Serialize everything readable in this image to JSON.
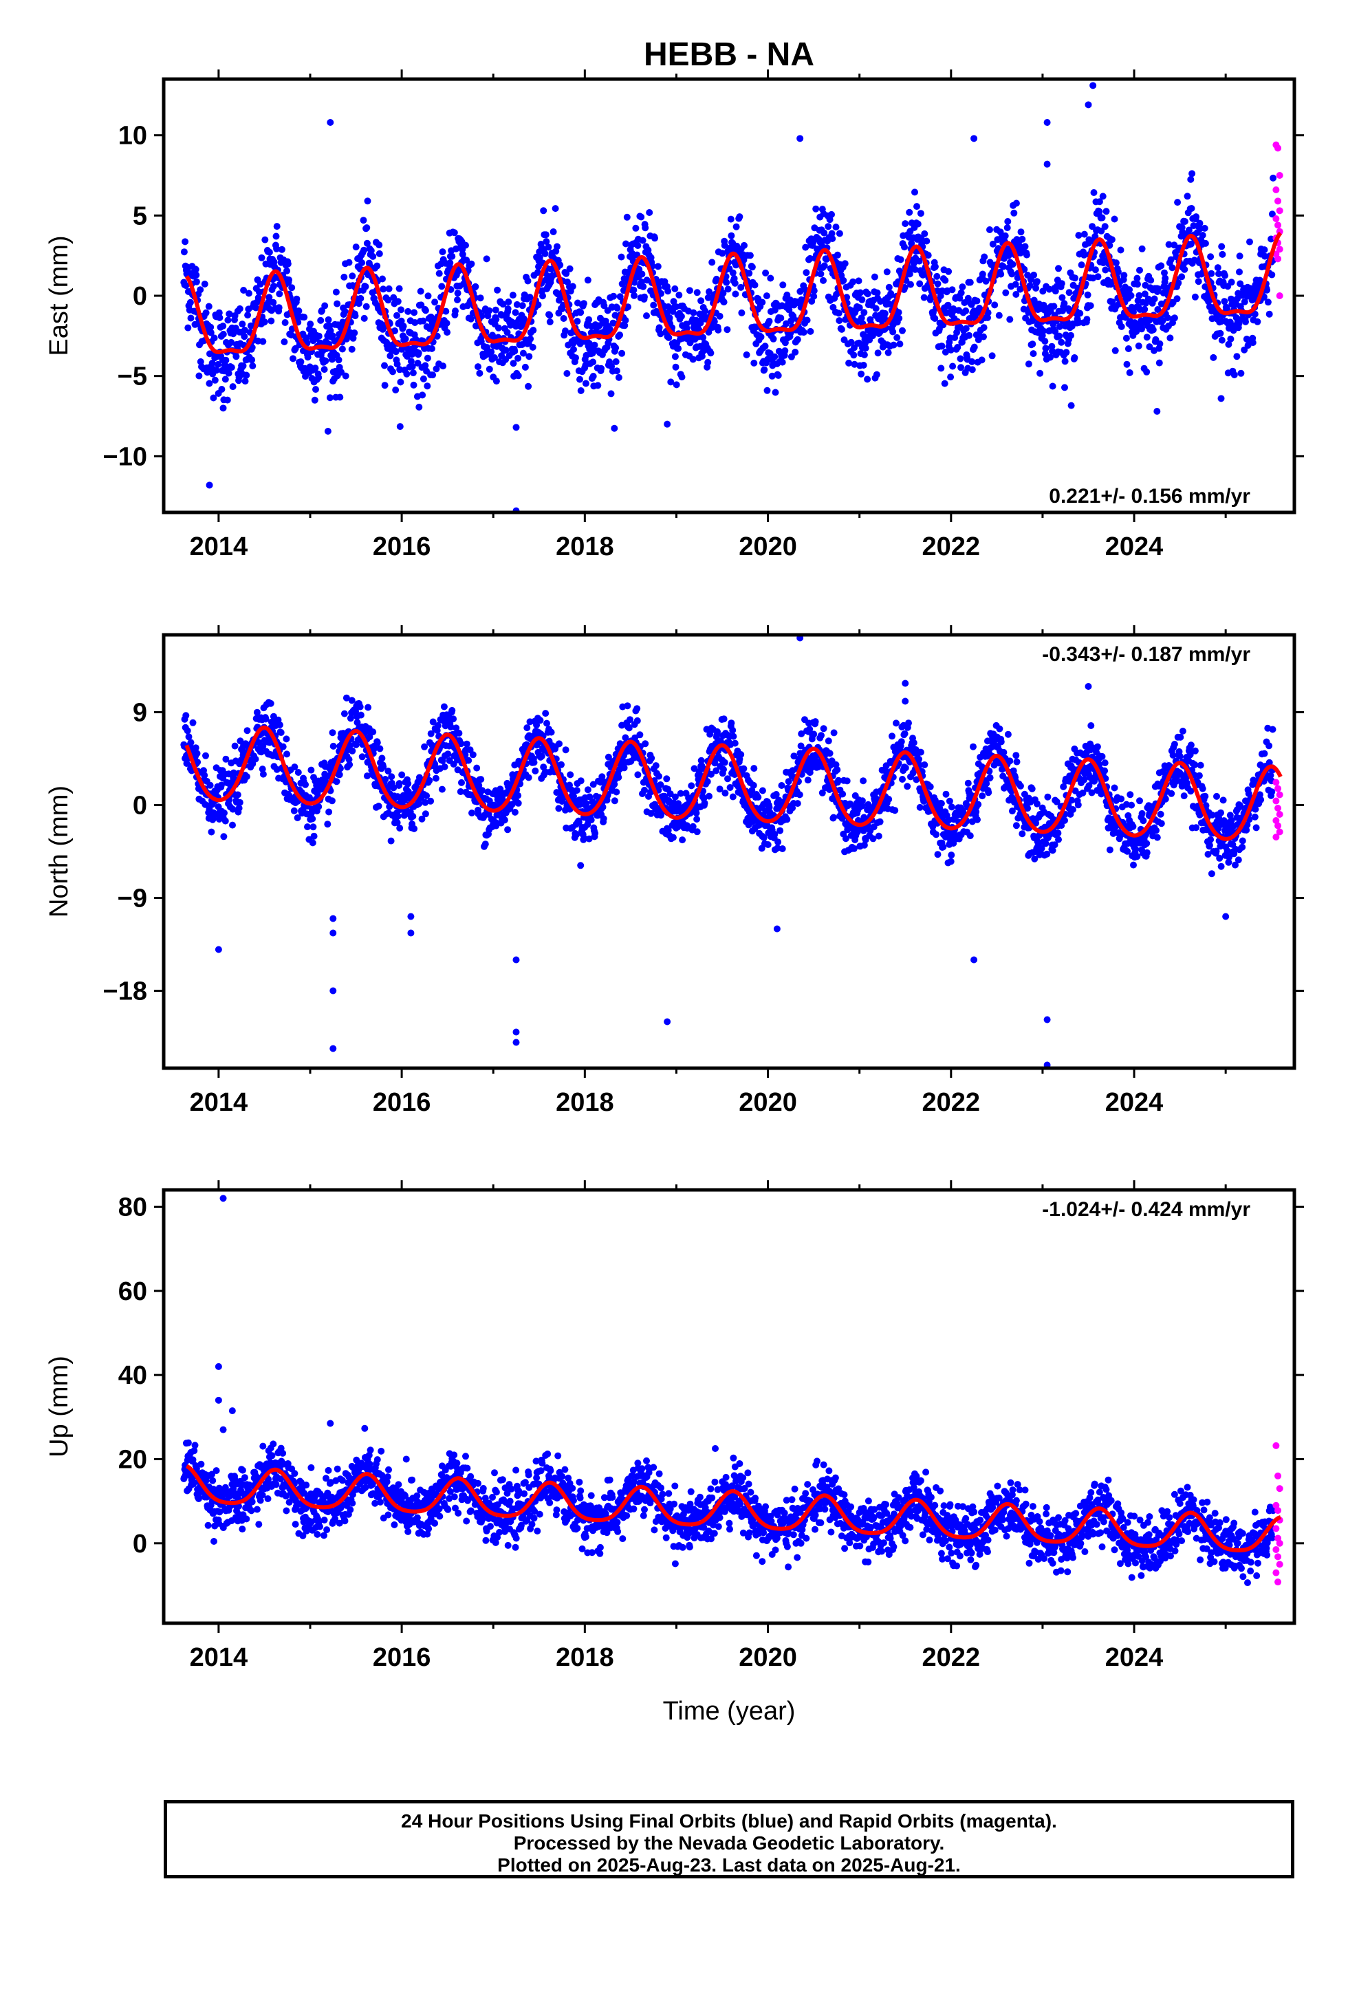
{
  "title": "HEBB - NA",
  "chart_data": [
    {
      "type": "scatter",
      "name": "east",
      "ylabel": "East (mm)",
      "xlabel": "",
      "xlim": [
        2013.4,
        2025.75
      ],
      "ylim": [
        -13.5,
        13.5
      ],
      "xticks": [
        2014,
        2016,
        2018,
        2020,
        2022,
        2024
      ],
      "yticks": [
        -10,
        -5,
        0,
        5,
        10
      ],
      "ytick_labels": [
        "−10",
        "−5",
        "0",
        "5",
        "10"
      ],
      "annotation": "0.221+/- 0.156 mm/yr",
      "annotation_position": "bottom-right",
      "trend": 0.221,
      "offset": -0.6,
      "annual_amplitude": 2.4,
      "annual_peak": 0.62,
      "semiannual_amplitude": 0.8,
      "scatter_sd": 1.5,
      "magenta_values": [
        9.4,
        9.2,
        7.5,
        6.6,
        5.9,
        5.3,
        4.8,
        4.4,
        4.0,
        3.6,
        3.3,
        2.9,
        2.6,
        2.3,
        0.0
      ],
      "outliers": [
        [
          2013.9,
          -11.8
        ],
        [
          2014.05,
          -7.0
        ],
        [
          2015.22,
          10.8
        ],
        [
          2017.25,
          -8.2
        ],
        [
          2017.25,
          -13.4
        ],
        [
          2018.9,
          -8.0
        ],
        [
          2020.35,
          9.8
        ],
        [
          2022.25,
          9.8
        ],
        [
          2023.05,
          10.8
        ],
        [
          2023.05,
          8.2
        ],
        [
          2023.55,
          13.1
        ],
        [
          2023.5,
          11.9
        ],
        [
          2024.25,
          -7.2
        ],
        [
          2024.95,
          -6.4
        ]
      ],
      "colors": {
        "final": "#0000ff",
        "rapid": "#ff00ff",
        "model": "#ff0000"
      }
    },
    {
      "type": "scatter",
      "name": "north",
      "ylabel": "North (mm)",
      "xlabel": "",
      "xlim": [
        2013.4,
        2025.75
      ],
      "ylim": [
        -25.5,
        16.5
      ],
      "xticks": [
        2014,
        2016,
        2018,
        2020,
        2022,
        2024
      ],
      "yticks": [
        -18,
        -9,
        0,
        9
      ],
      "ytick_labels": [
        "−18",
        "−9",
        "0",
        "9"
      ],
      "annotation": "-0.343+/- 0.187 mm/yr",
      "annotation_position": "top-right",
      "trend": -0.343,
      "offset": 1.8,
      "annual_amplitude": 3.6,
      "annual_peak": 0.5,
      "semiannual_amplitude": 0.4,
      "scatter_sd": 1.5,
      "magenta_values": [
        2.2,
        1.6,
        1.0,
        0.4,
        -0.3,
        -0.9,
        -1.5,
        -2.0,
        -2.6,
        -3.1
      ],
      "outliers": [
        [
          2014.0,
          -14.0
        ],
        [
          2015.25,
          -11.0
        ],
        [
          2015.25,
          -12.4
        ],
        [
          2015.25,
          -18.0
        ],
        [
          2015.25,
          -23.6
        ],
        [
          2016.1,
          -10.8
        ],
        [
          2016.1,
          -12.4
        ],
        [
          2017.25,
          -15.0
        ],
        [
          2017.25,
          -22.0
        ],
        [
          2017.25,
          -23.0
        ],
        [
          2018.9,
          -21.0
        ],
        [
          2020.35,
          16.2
        ],
        [
          2020.1,
          -12.0
        ],
        [
          2022.25,
          -15.0
        ],
        [
          2023.05,
          -20.8
        ],
        [
          2023.05,
          -25.2
        ],
        [
          2023.5,
          11.5
        ],
        [
          2021.5,
          11.8
        ],
        [
          2025.0,
          -10.8
        ]
      ],
      "colors": {
        "final": "#0000ff",
        "rapid": "#ff00ff",
        "model": "#ff0000"
      }
    },
    {
      "type": "scatter",
      "name": "up",
      "ylabel": "Up (mm)",
      "xlabel": "Time (year)",
      "xlim": [
        2013.4,
        2025.75
      ],
      "ylim": [
        -19,
        84
      ],
      "xticks": [
        2014,
        2016,
        2018,
        2020,
        2022,
        2024
      ],
      "yticks": [
        0,
        20,
        40,
        60,
        80
      ],
      "ytick_labels": [
        "0",
        "20",
        "40",
        "60",
        "80"
      ],
      "annotation": "-1.024+/- 0.424 mm/yr",
      "annotation_position": "top-right",
      "trend": -1.024,
      "offset": 7.5,
      "annual_amplitude": 4.2,
      "annual_peak": 0.62,
      "semiannual_amplitude": 0.8,
      "scatter_sd": 3.3,
      "magenta_values": [
        23.2,
        16.0,
        13.0,
        9.0,
        7.8,
        5.5,
        3.5,
        1.2,
        0.0,
        -1.5,
        -3.2,
        -5.0,
        -7.0,
        -9.2
      ],
      "outliers": [
        [
          2014.05,
          82.0
        ],
        [
          2014.0,
          42.0
        ],
        [
          2014.0,
          34.0
        ],
        [
          2014.15,
          31.5
        ],
        [
          2014.05,
          27.0
        ],
        [
          2015.22,
          28.5
        ],
        [
          2016.05,
          20.0
        ],
        [
          2014.65,
          21.5
        ]
      ],
      "colors": {
        "final": "#0000ff",
        "rapid": "#ff00ff",
        "model": "#ff0000"
      }
    }
  ],
  "footer": {
    "line1": "24 Hour Positions Using Final Orbits (blue) and Rapid Orbits (magenta).",
    "line2": "Processed by the Nevada Geodetic Laboratory.",
    "line3": "Plotted on 2025-Aug-23. Last data on 2025-Aug-21."
  }
}
